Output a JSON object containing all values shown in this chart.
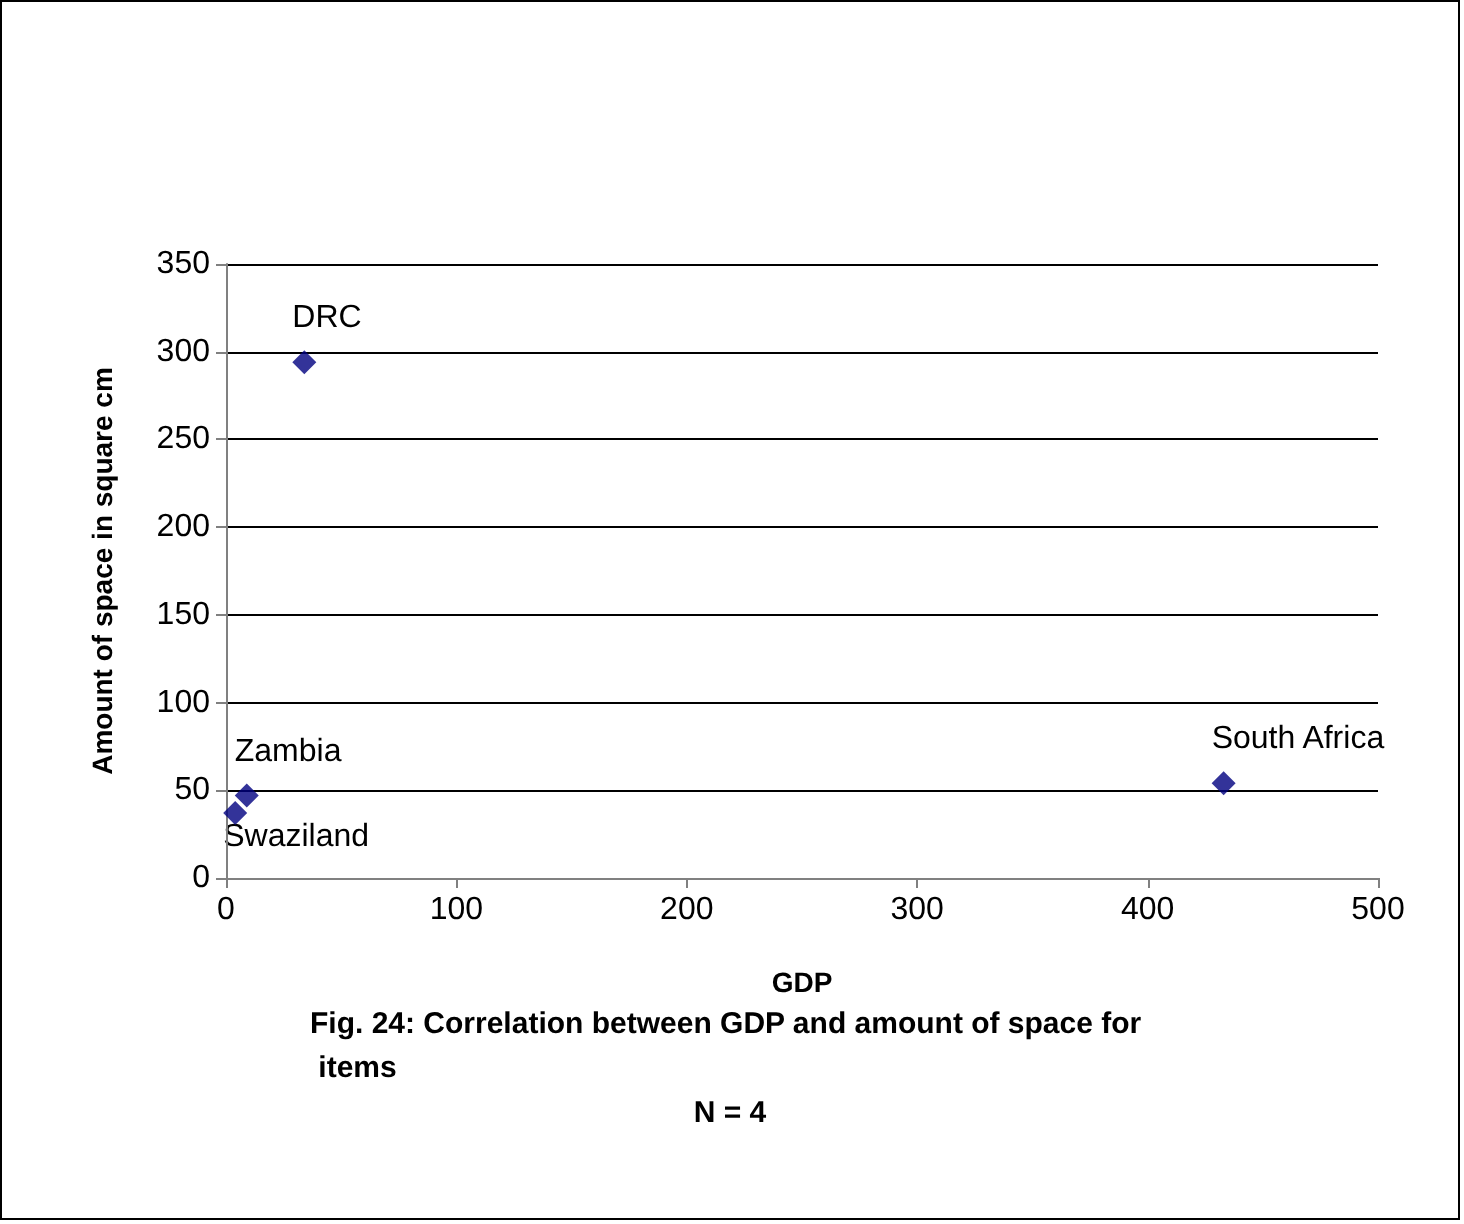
{
  "chart_data": {
    "type": "scatter",
    "title": "Fig. 24: Correlation between GDP and amount of space for items",
    "subtitle": "N = 4",
    "xlabel": "GDP",
    "ylabel": "Amount of space in square cm",
    "x": [
      34,
      9,
      4,
      433
    ],
    "values": [
      294,
      47,
      37,
      54
    ],
    "color": "#000080",
    "marker": "diamond",
    "xlim": [
      0,
      500
    ],
    "xticks": [
      0,
      100,
      200,
      300,
      400,
      500
    ],
    "ylim": [
      0,
      350
    ],
    "yticks": [
      0,
      50,
      100,
      150,
      200,
      250,
      300,
      350
    ],
    "grid": "y",
    "annotations": [
      {
        "text": "DRC",
        "x": 34,
        "y": 294
      },
      {
        "text": "Zambia",
        "x": 9,
        "y": 47
      },
      {
        "text": "Swaziland",
        "x": 4,
        "y": 37
      },
      {
        "text": "South Africa",
        "x": 433,
        "y": 54
      }
    ]
  }
}
